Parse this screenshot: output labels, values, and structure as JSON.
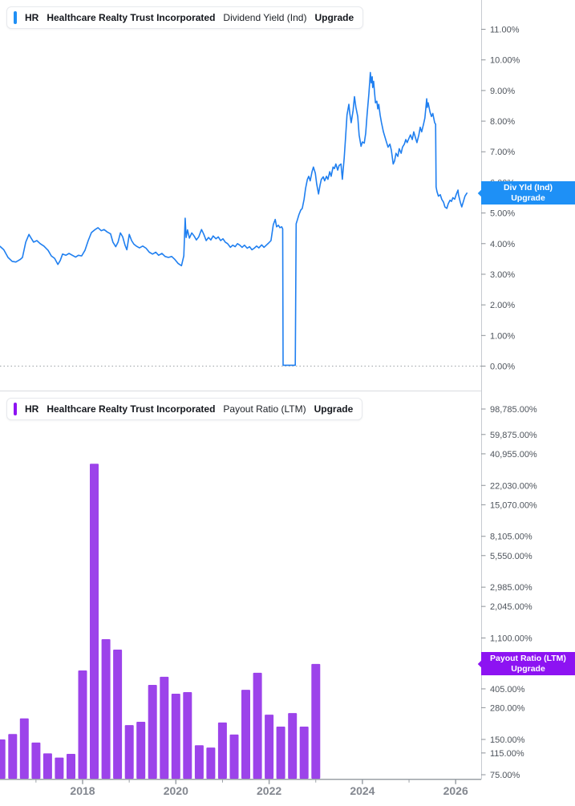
{
  "top_chart": {
    "header": {
      "ticker": "HR",
      "company": "Healthcare Realty Trust Incorporated",
      "metric": "Dividend Yield (Ind)",
      "action": "Upgrade"
    },
    "badge": {
      "line1": "Div Yld (Ind)",
      "line2": "Upgrade"
    },
    "colors": {
      "accent": "#1f8ff5",
      "line": "#1f7ff0",
      "badge": "#1e90f6"
    }
  },
  "bottom_chart": {
    "header": {
      "ticker": "HR",
      "company": "Healthcare Realty Trust Incorporated",
      "metric": "Payout Ratio (LTM)",
      "action": "Upgrade"
    },
    "badge": {
      "line1": "Payout Ratio (LTM)",
      "line2": "Upgrade"
    },
    "colors": {
      "accent": "#8d13f2",
      "bar": "#9c43ea",
      "badge": "#8d13f2"
    }
  },
  "x_axis": {
    "major_years": [
      2018,
      2020,
      2022,
      2024,
      2026
    ],
    "major_labels": [
      "2018",
      "2020",
      "2022",
      "2024",
      "2026"
    ],
    "minor_years": [
      2017,
      2019,
      2021,
      2023,
      2025
    ]
  },
  "theme": {
    "background": "#ffffff",
    "axis_line": "#c7cbd1",
    "x_axis_line": "#9aa0a6",
    "tick": "#8d9298",
    "tick_label": "#4e545c",
    "year_label": "#83878f",
    "divider": "#d9dcdf",
    "zero_dotted": "#9ba0a6"
  },
  "chart_data": [
    {
      "type": "line",
      "title": "Dividend Yield (Ind)",
      "ticker": "HR",
      "company": "Healthcare Realty Trust Incorporated",
      "ylabel": "Dividend Yield",
      "ytick_format": "percent",
      "ylim": [
        0,
        11.5
      ],
      "yticks": [
        0,
        1,
        2,
        3,
        4,
        5,
        6,
        7,
        8,
        9,
        10,
        11
      ],
      "x_range": [
        2016.23,
        2026.55
      ],
      "grid": false,
      "legend_position": "right-axis-badge",
      "last_value": 5.66,
      "series": [
        {
          "name": "Div Yld (Ind)",
          "points": [
            [
              2016.23,
              3.91
            ],
            [
              2016.31,
              3.8
            ],
            [
              2016.4,
              3.55
            ],
            [
              2016.49,
              3.42
            ],
            [
              2016.57,
              3.4
            ],
            [
              2016.66,
              3.48
            ],
            [
              2016.71,
              3.55
            ],
            [
              2016.78,
              4.05
            ],
            [
              2016.85,
              4.3
            ],
            [
              2016.88,
              4.22
            ],
            [
              2016.95,
              4.05
            ],
            [
              2017.02,
              4.1
            ],
            [
              2017.09,
              4.0
            ],
            [
              2017.17,
              3.92
            ],
            [
              2017.26,
              3.78
            ],
            [
              2017.33,
              3.6
            ],
            [
              2017.4,
              3.52
            ],
            [
              2017.47,
              3.32
            ],
            [
              2017.52,
              3.45
            ],
            [
              2017.57,
              3.66
            ],
            [
              2017.64,
              3.62
            ],
            [
              2017.71,
              3.68
            ],
            [
              2017.78,
              3.62
            ],
            [
              2017.85,
              3.56
            ],
            [
              2017.91,
              3.62
            ],
            [
              2017.98,
              3.6
            ],
            [
              2018.05,
              3.78
            ],
            [
              2018.12,
              4.1
            ],
            [
              2018.19,
              4.36
            ],
            [
              2018.26,
              4.45
            ],
            [
              2018.33,
              4.52
            ],
            [
              2018.4,
              4.42
            ],
            [
              2018.46,
              4.46
            ],
            [
              2018.53,
              4.38
            ],
            [
              2018.6,
              4.32
            ],
            [
              2018.65,
              4.05
            ],
            [
              2018.71,
              3.9
            ],
            [
              2018.76,
              4.05
            ],
            [
              2018.81,
              4.35
            ],
            [
              2018.86,
              4.22
            ],
            [
              2018.91,
              3.95
            ],
            [
              2018.95,
              3.8
            ],
            [
              2019.0,
              4.3
            ],
            [
              2019.05,
              4.1
            ],
            [
              2019.1,
              3.98
            ],
            [
              2019.15,
              3.92
            ],
            [
              2019.22,
              3.86
            ],
            [
              2019.29,
              3.92
            ],
            [
              2019.36,
              3.85
            ],
            [
              2019.43,
              3.72
            ],
            [
              2019.5,
              3.66
            ],
            [
              2019.57,
              3.72
            ],
            [
              2019.63,
              3.62
            ],
            [
              2019.7,
              3.68
            ],
            [
              2019.77,
              3.58
            ],
            [
              2019.84,
              3.55
            ],
            [
              2019.91,
              3.58
            ],
            [
              2019.98,
              3.48
            ],
            [
              2020.05,
              3.35
            ],
            [
              2020.12,
              3.28
            ],
            [
              2020.17,
              3.6
            ],
            [
              2020.2,
              4.83
            ],
            [
              2020.22,
              4.2
            ],
            [
              2020.25,
              4.45
            ],
            [
              2020.29,
              4.18
            ],
            [
              2020.34,
              4.35
            ],
            [
              2020.39,
              4.25
            ],
            [
              2020.44,
              4.12
            ],
            [
              2020.49,
              4.22
            ],
            [
              2020.55,
              4.46
            ],
            [
              2020.6,
              4.3
            ],
            [
              2020.65,
              4.1
            ],
            [
              2020.7,
              4.2
            ],
            [
              2020.75,
              4.12
            ],
            [
              2020.8,
              4.25
            ],
            [
              2020.86,
              4.16
            ],
            [
              2020.91,
              4.22
            ],
            [
              2020.96,
              4.1
            ],
            [
              2021.01,
              4.16
            ],
            [
              2021.06,
              4.05
            ],
            [
              2021.11,
              4.0
            ],
            [
              2021.17,
              3.88
            ],
            [
              2021.22,
              3.95
            ],
            [
              2021.27,
              3.9
            ],
            [
              2021.32,
              4.0
            ],
            [
              2021.37,
              3.95
            ],
            [
              2021.42,
              3.88
            ],
            [
              2021.47,
              3.95
            ],
            [
              2021.53,
              3.85
            ],
            [
              2021.58,
              3.9
            ],
            [
              2021.63,
              3.8
            ],
            [
              2021.68,
              3.85
            ],
            [
              2021.73,
              3.92
            ],
            [
              2021.78,
              3.86
            ],
            [
              2021.84,
              3.96
            ],
            [
              2021.89,
              3.88
            ],
            [
              2021.94,
              3.95
            ],
            [
              2021.99,
              4.02
            ],
            [
              2022.04,
              4.1
            ],
            [
              2022.09,
              4.62
            ],
            [
              2022.13,
              4.79
            ],
            [
              2022.16,
              4.55
            ],
            [
              2022.2,
              4.6
            ],
            [
              2022.23,
              4.52
            ],
            [
              2022.27,
              4.55
            ],
            [
              2022.29,
              4.48
            ],
            [
              2022.3,
              0.03
            ],
            [
              2022.56,
              0.03
            ],
            [
              2022.58,
              4.65
            ],
            [
              2022.61,
              4.8
            ],
            [
              2022.64,
              4.95
            ],
            [
              2022.68,
              5.1
            ],
            [
              2022.71,
              5.15
            ],
            [
              2022.75,
              5.45
            ],
            [
              2022.78,
              5.8
            ],
            [
              2022.82,
              6.1
            ],
            [
              2022.85,
              6.2
            ],
            [
              2022.88,
              6.05
            ],
            [
              2022.92,
              6.35
            ],
            [
              2022.95,
              6.5
            ],
            [
              2022.99,
              6.3
            ],
            [
              2023.02,
              5.95
            ],
            [
              2023.06,
              5.62
            ],
            [
              2023.09,
              5.9
            ],
            [
              2023.12,
              6.1
            ],
            [
              2023.16,
              6.18
            ],
            [
              2023.19,
              6.05
            ],
            [
              2023.23,
              6.2
            ],
            [
              2023.26,
              6.1
            ],
            [
              2023.3,
              6.35
            ],
            [
              2023.33,
              6.2
            ],
            [
              2023.37,
              6.5
            ],
            [
              2023.4,
              6.45
            ],
            [
              2023.43,
              6.6
            ],
            [
              2023.47,
              6.4
            ],
            [
              2023.5,
              6.55
            ],
            [
              2023.54,
              6.6
            ],
            [
              2023.57,
              6.1
            ],
            [
              2023.61,
              6.8
            ],
            [
              2023.64,
              7.5
            ],
            [
              2023.67,
              8.2
            ],
            [
              2023.71,
              8.55
            ],
            [
              2023.73,
              8.25
            ],
            [
              2023.76,
              7.95
            ],
            [
              2023.8,
              8.35
            ],
            [
              2023.83,
              8.8
            ],
            [
              2023.86,
              8.45
            ],
            [
              2023.9,
              8.15
            ],
            [
              2023.93,
              7.55
            ],
            [
              2023.97,
              7.18
            ],
            [
              2024.0,
              7.32
            ],
            [
              2024.04,
              7.28
            ],
            [
              2024.07,
              7.6
            ],
            [
              2024.1,
              8.2
            ],
            [
              2024.14,
              8.9
            ],
            [
              2024.16,
              9.35
            ],
            [
              2024.17,
              9.59
            ],
            [
              2024.19,
              9.25
            ],
            [
              2024.21,
              9.45
            ],
            [
              2024.22,
              9.1
            ],
            [
              2024.24,
              9.3
            ],
            [
              2024.26,
              8.95
            ],
            [
              2024.28,
              8.6
            ],
            [
              2024.31,
              8.65
            ],
            [
              2024.33,
              8.4
            ],
            [
              2024.35,
              8.55
            ],
            [
              2024.38,
              8.2
            ],
            [
              2024.41,
              7.95
            ],
            [
              2024.45,
              7.65
            ],
            [
              2024.48,
              7.5
            ],
            [
              2024.52,
              7.3
            ],
            [
              2024.55,
              7.15
            ],
            [
              2024.59,
              7.25
            ],
            [
              2024.62,
              7.05
            ],
            [
              2024.66,
              6.6
            ],
            [
              2024.69,
              6.7
            ],
            [
              2024.72,
              6.95
            ],
            [
              2024.76,
              6.85
            ],
            [
              2024.79,
              7.1
            ],
            [
              2024.83,
              6.95
            ],
            [
              2024.86,
              7.15
            ],
            [
              2024.9,
              7.25
            ],
            [
              2024.93,
              7.4
            ],
            [
              2024.96,
              7.3
            ],
            [
              2025.0,
              7.45
            ],
            [
              2025.03,
              7.55
            ],
            [
              2025.07,
              7.4
            ],
            [
              2025.1,
              7.65
            ],
            [
              2025.14,
              7.45
            ],
            [
              2025.17,
              7.3
            ],
            [
              2025.21,
              7.55
            ],
            [
              2025.24,
              7.8
            ],
            [
              2025.27,
              7.65
            ],
            [
              2025.31,
              7.9
            ],
            [
              2025.34,
              8.1
            ],
            [
              2025.38,
              8.73
            ],
            [
              2025.39,
              8.45
            ],
            [
              2025.41,
              8.6
            ],
            [
              2025.45,
              8.3
            ],
            [
              2025.48,
              8.15
            ],
            [
              2025.51,
              8.25
            ],
            [
              2025.55,
              7.95
            ],
            [
              2025.57,
              7.9
            ],
            [
              2025.58,
              5.85
            ],
            [
              2025.6,
              5.7
            ],
            [
              2025.63,
              5.55
            ],
            [
              2025.67,
              5.6
            ],
            [
              2025.7,
              5.45
            ],
            [
              2025.74,
              5.35
            ],
            [
              2025.77,
              5.2
            ],
            [
              2025.81,
              5.15
            ],
            [
              2025.84,
              5.3
            ],
            [
              2025.88,
              5.42
            ],
            [
              2025.91,
              5.38
            ],
            [
              2025.94,
              5.5
            ],
            [
              2025.98,
              5.45
            ],
            [
              2026.01,
              5.6
            ],
            [
              2026.05,
              5.75
            ],
            [
              2026.06,
              5.6
            ],
            [
              2026.1,
              5.35
            ],
            [
              2026.13,
              5.2
            ],
            [
              2026.17,
              5.4
            ],
            [
              2026.2,
              5.55
            ],
            [
              2026.24,
              5.65
            ]
          ]
        }
      ]
    },
    {
      "type": "bar",
      "title": "Payout Ratio (LTM)",
      "ticker": "HR",
      "company": "Healthcare Realty Trust Incorporated",
      "ylabel": "Payout Ratio",
      "yscale": "log",
      "ytick_format": "percent",
      "ylim": [
        60,
        130000
      ],
      "yticks": [
        98785,
        59875,
        40955,
        22030,
        15070,
        8105,
        5550,
        2985,
        2045,
        1100,
        405,
        280,
        150,
        115,
        75
      ],
      "x_range": [
        2016.23,
        2026.55
      ],
      "grid": false,
      "legend_position": "right-axis-badge",
      "last_value": 660,
      "x": [
        2016.25,
        2016.5,
        2016.75,
        2017.0,
        2017.25,
        2017.5,
        2017.75,
        2018.0,
        2018.25,
        2018.5,
        2018.75,
        2019.0,
        2019.25,
        2019.5,
        2019.75,
        2020.0,
        2020.25,
        2020.5,
        2020.75,
        2021.0,
        2021.25,
        2021.5,
        2021.75,
        2022.0,
        2022.25,
        2022.5,
        2022.75,
        2023.0
      ],
      "values": [
        150,
        167,
        227,
        141,
        114,
        105,
        113,
        581,
        33700,
        1075,
        875,
        199,
        212,
        438,
        513,
        368,
        380,
        134,
        128,
        209,
        165,
        398,
        555,
        244,
        193,
        252,
        193,
        660
      ]
    }
  ]
}
